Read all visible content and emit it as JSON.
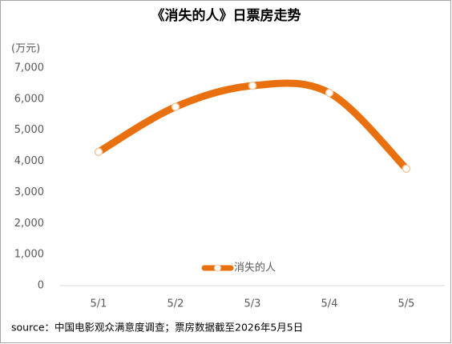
{
  "chart_data": {
    "type": "line",
    "title": "《消失的人》日票房走势",
    "y_unit": "(万元)",
    "categories": [
      "5/1",
      "5/2",
      "5/3",
      "5/4",
      "5/5"
    ],
    "series": [
      {
        "name": "消失的人",
        "color": "#e8700f",
        "values": [
          4300,
          5750,
          6430,
          6200,
          3760
        ]
      }
    ],
    "ylim": [
      0,
      7000
    ],
    "yticks": [
      0,
      {
        "value": 1000,
        "label": "1,000"
      },
      {
        "value": 2000,
        "label": "2,000"
      },
      {
        "value": 3000,
        "label": "3,000"
      },
      {
        "value": 4000,
        "label": "4,000"
      },
      {
        "value": 5000,
        "label": "5,000"
      },
      {
        "value": 6000,
        "label": "6,000"
      },
      {
        "value": 7000,
        "label": "7,000"
      }
    ],
    "smooth": true,
    "legend": "bottom",
    "source": "source：中国电影观众满意度调查；票房数据截至2026年5月5日"
  }
}
